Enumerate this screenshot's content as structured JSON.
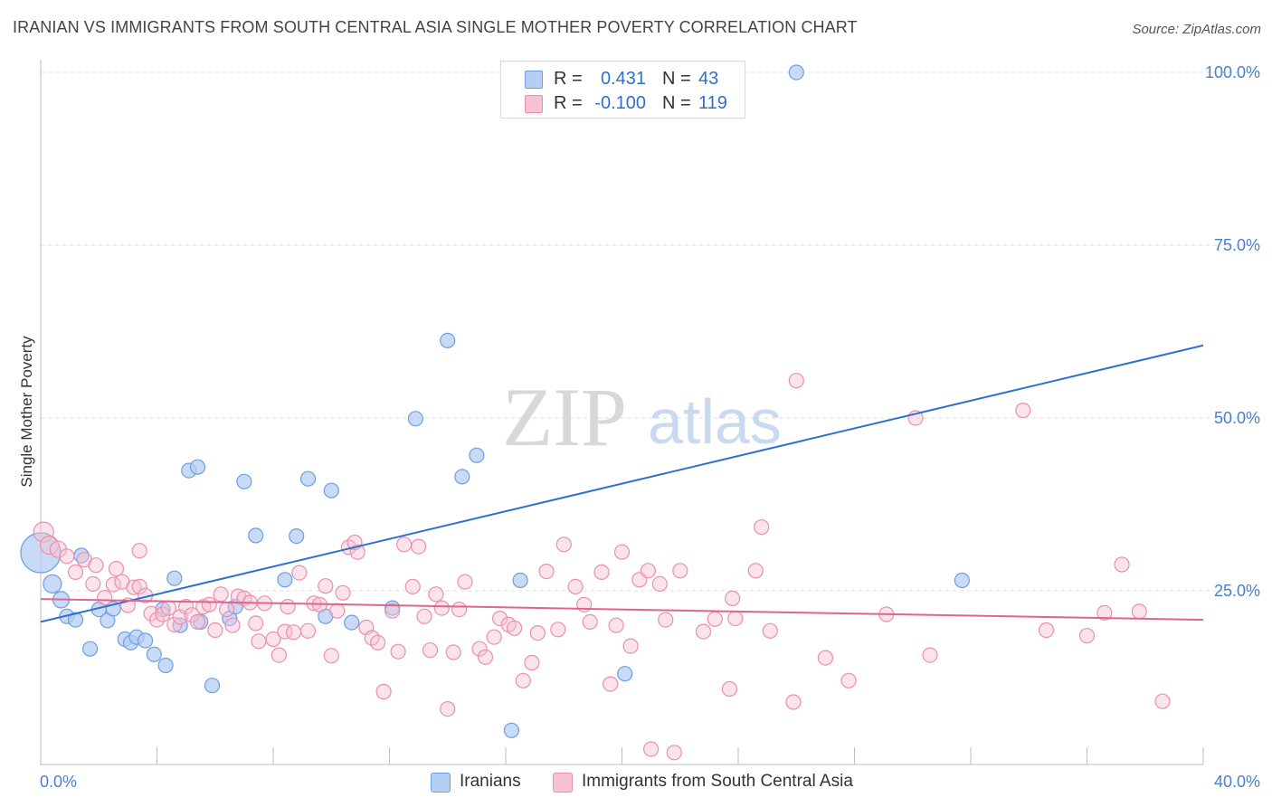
{
  "title": "IRANIAN VS IMMIGRANTS FROM SOUTH CENTRAL ASIA SINGLE MOTHER POVERTY CORRELATION CHART",
  "source": "Source: ZipAtlas.com",
  "watermark": {
    "zip": "ZIP",
    "atlas": "atlas"
  },
  "colors": {
    "blue_fill": "#b5cef2",
    "blue_stroke": "#6e9fe0",
    "blue_line": "#2f6fd0",
    "pink_fill": "#f7c2d3",
    "pink_stroke": "#ea8fae",
    "pink_line": "#e0648f",
    "axis_text": "#4a7fd0",
    "grid": "#dedede"
  },
  "legend": {
    "rows": [
      {
        "r_label": "R =",
        "r_value": "0.431",
        "n_label": "N =",
        "n_value": "43"
      },
      {
        "r_label": "R =",
        "r_value": "-0.100",
        "n_label": "N =",
        "n_value": "119"
      }
    ]
  },
  "chart_data": {
    "type": "scatter",
    "title": "IRANIAN VS IMMIGRANTS FROM SOUTH CENTRAL ASIA SINGLE MOTHER POVERTY CORRELATION CHART",
    "xlabel": "",
    "ylabel": "Single Mother Poverty",
    "xlim": [
      0,
      40
    ],
    "ylim": [
      0,
      102
    ],
    "x_tick_labels": [
      {
        "value": 0,
        "label": "0.0%"
      },
      {
        "value": 40,
        "label": "40.0%"
      }
    ],
    "x_minor_ticks": [
      4,
      8,
      12,
      16,
      20,
      24,
      28,
      32,
      36
    ],
    "y_tick_labels": [
      {
        "value": 25,
        "label": "25.0%"
      },
      {
        "value": 50,
        "label": "50.0%"
      },
      {
        "value": 75,
        "label": "75.0%"
      },
      {
        "value": 100,
        "label": "100.0%"
      }
    ],
    "grid": true,
    "legend_position": "top-center",
    "series": [
      {
        "name": "Iranians",
        "r": 0.431,
        "n": 43,
        "trend": {
          "x": [
            0,
            40
          ],
          "y": [
            20.5,
            60.5
          ]
        },
        "points": [
          [
            0.0,
            30.5,
            22
          ],
          [
            0.4,
            26.0,
            10
          ],
          [
            0.7,
            23.7,
            9
          ],
          [
            0.9,
            21.3,
            8
          ],
          [
            1.2,
            20.8,
            8
          ],
          [
            1.4,
            30.1,
            8
          ],
          [
            1.7,
            16.6,
            8
          ],
          [
            2.0,
            22.3,
            8
          ],
          [
            2.3,
            20.7,
            8
          ],
          [
            2.5,
            22.4,
            8
          ],
          [
            2.9,
            18.0,
            8
          ],
          [
            3.1,
            17.5,
            8
          ],
          [
            3.3,
            18.3,
            8
          ],
          [
            3.6,
            17.8,
            8
          ],
          [
            3.9,
            15.8,
            8
          ],
          [
            4.2,
            22.3,
            8
          ],
          [
            4.3,
            14.2,
            8
          ],
          [
            4.6,
            26.8,
            8
          ],
          [
            4.8,
            20.0,
            8
          ],
          [
            5.1,
            42.4,
            8
          ],
          [
            5.4,
            42.9,
            8
          ],
          [
            5.5,
            20.5,
            8
          ],
          [
            5.9,
            11.3,
            8
          ],
          [
            6.5,
            21.0,
            8
          ],
          [
            6.7,
            22.7,
            8
          ],
          [
            7.0,
            40.8,
            8
          ],
          [
            7.4,
            33.0,
            8
          ],
          [
            8.4,
            26.6,
            8
          ],
          [
            8.8,
            32.9,
            8
          ],
          [
            9.2,
            41.2,
            8
          ],
          [
            9.8,
            21.3,
            8
          ],
          [
            10.0,
            39.5,
            8
          ],
          [
            10.7,
            20.4,
            8
          ],
          [
            12.1,
            22.5,
            8
          ],
          [
            12.9,
            49.9,
            8
          ],
          [
            14.0,
            61.2,
            8
          ],
          [
            14.5,
            41.5,
            8
          ],
          [
            15.0,
            44.6,
            8
          ],
          [
            16.2,
            4.8,
            8
          ],
          [
            16.5,
            26.5,
            8
          ],
          [
            20.1,
            13.0,
            8
          ],
          [
            26.0,
            100.0,
            8
          ],
          [
            31.7,
            26.5,
            8
          ]
        ]
      },
      {
        "name": "Immigrants from South Central Asia",
        "r": -0.1,
        "n": 119,
        "trend": {
          "x": [
            0,
            40
          ],
          "y": [
            23.8,
            20.8
          ]
        },
        "points": [
          [
            0.1,
            33.5,
            11
          ],
          [
            0.3,
            31.6,
            10
          ],
          [
            0.6,
            31.0,
            9
          ],
          [
            0.9,
            30.0,
            8
          ],
          [
            1.2,
            27.7,
            8
          ],
          [
            1.5,
            29.5,
            8
          ],
          [
            1.8,
            26.0,
            8
          ],
          [
            1.9,
            28.7,
            8
          ],
          [
            2.2,
            24.0,
            8
          ],
          [
            2.5,
            25.9,
            8
          ],
          [
            2.6,
            28.2,
            8
          ],
          [
            2.8,
            26.3,
            8
          ],
          [
            3.0,
            22.9,
            8
          ],
          [
            3.2,
            25.5,
            8
          ],
          [
            3.4,
            25.6,
            8
          ],
          [
            3.4,
            30.8,
            8
          ],
          [
            3.6,
            24.3,
            8
          ],
          [
            3.8,
            21.7,
            8
          ],
          [
            4.0,
            20.8,
            8
          ],
          [
            4.2,
            21.6,
            8
          ],
          [
            4.4,
            22.5,
            8
          ],
          [
            4.6,
            20.1,
            8
          ],
          [
            4.8,
            21.2,
            8
          ],
          [
            5.0,
            22.7,
            8
          ],
          [
            5.2,
            21.5,
            8
          ],
          [
            5.4,
            20.5,
            8
          ],
          [
            5.6,
            22.7,
            8
          ],
          [
            5.8,
            23.0,
            8
          ],
          [
            6.0,
            19.3,
            8
          ],
          [
            6.2,
            24.5,
            8
          ],
          [
            6.4,
            22.3,
            8
          ],
          [
            6.6,
            20.0,
            8
          ],
          [
            6.8,
            24.2,
            8
          ],
          [
            7.0,
            23.9,
            8
          ],
          [
            7.2,
            23.3,
            8
          ],
          [
            7.4,
            20.3,
            8
          ],
          [
            7.5,
            17.7,
            8
          ],
          [
            7.7,
            23.2,
            8
          ],
          [
            8.0,
            18.0,
            8
          ],
          [
            8.2,
            15.7,
            8
          ],
          [
            8.4,
            19.1,
            8
          ],
          [
            8.5,
            22.7,
            8
          ],
          [
            8.7,
            19.0,
            8
          ],
          [
            8.9,
            27.6,
            8
          ],
          [
            9.2,
            19.2,
            8
          ],
          [
            9.4,
            23.2,
            8
          ],
          [
            9.6,
            23.0,
            8
          ],
          [
            9.8,
            25.7,
            8
          ],
          [
            10.0,
            15.6,
            8
          ],
          [
            10.2,
            22.1,
            8
          ],
          [
            10.4,
            24.7,
            8
          ],
          [
            10.6,
            31.3,
            8
          ],
          [
            10.9,
            30.6,
            8
          ],
          [
            10.8,
            32.0,
            8
          ],
          [
            11.2,
            19.7,
            8
          ],
          [
            11.4,
            18.2,
            8
          ],
          [
            11.6,
            17.5,
            8
          ],
          [
            11.8,
            10.4,
            8
          ],
          [
            12.1,
            22.1,
            8
          ],
          [
            12.3,
            16.2,
            8
          ],
          [
            12.5,
            31.7,
            8
          ],
          [
            12.8,
            25.6,
            8
          ],
          [
            13.0,
            31.4,
            8
          ],
          [
            13.2,
            21.3,
            8
          ],
          [
            13.4,
            16.4,
            8
          ],
          [
            13.6,
            24.5,
            8
          ],
          [
            13.8,
            22.5,
            8
          ],
          [
            14.0,
            7.9,
            8
          ],
          [
            14.2,
            16.1,
            8
          ],
          [
            14.4,
            22.3,
            8
          ],
          [
            14.6,
            26.3,
            8
          ],
          [
            15.1,
            16.6,
            8
          ],
          [
            15.3,
            15.4,
            8
          ],
          [
            15.6,
            18.3,
            8
          ],
          [
            15.8,
            21.0,
            8
          ],
          [
            16.1,
            20.1,
            8
          ],
          [
            16.3,
            19.6,
            8
          ],
          [
            16.6,
            12.0,
            8
          ],
          [
            16.9,
            14.6,
            8
          ],
          [
            17.1,
            18.9,
            8
          ],
          [
            17.4,
            27.8,
            8
          ],
          [
            17.8,
            19.4,
            8
          ],
          [
            18.0,
            31.7,
            8
          ],
          [
            18.4,
            25.6,
            8
          ],
          [
            18.7,
            23.0,
            8
          ],
          [
            18.9,
            20.5,
            8
          ],
          [
            19.3,
            27.7,
            8
          ],
          [
            19.6,
            11.5,
            8
          ],
          [
            19.8,
            20.0,
            8
          ],
          [
            20.0,
            30.6,
            8
          ],
          [
            20.3,
            17.0,
            8
          ],
          [
            20.6,
            26.6,
            8
          ],
          [
            20.9,
            27.9,
            8
          ],
          [
            21.0,
            2.1,
            8
          ],
          [
            21.3,
            26.0,
            8
          ],
          [
            21.5,
            20.8,
            8
          ],
          [
            21.8,
            1.6,
            8
          ],
          [
            22.0,
            27.9,
            8
          ],
          [
            22.8,
            19.1,
            8
          ],
          [
            23.2,
            20.9,
            8
          ],
          [
            23.7,
            10.8,
            8
          ],
          [
            23.8,
            23.9,
            8
          ],
          [
            23.9,
            21.0,
            8
          ],
          [
            24.6,
            27.9,
            8
          ],
          [
            24.8,
            34.2,
            8
          ],
          [
            25.1,
            19.2,
            8
          ],
          [
            25.9,
            8.9,
            8
          ],
          [
            26.0,
            55.4,
            8
          ],
          [
            27.0,
            15.3,
            8
          ],
          [
            27.8,
            12.0,
            8
          ],
          [
            29.1,
            21.6,
            8
          ],
          [
            30.1,
            50.0,
            8
          ],
          [
            30.6,
            15.7,
            8
          ],
          [
            33.8,
            51.1,
            8
          ],
          [
            34.6,
            19.3,
            8
          ],
          [
            36.0,
            18.5,
            8
          ],
          [
            36.6,
            21.8,
            8
          ],
          [
            37.2,
            28.8,
            8
          ],
          [
            37.8,
            22.0,
            8
          ],
          [
            38.6,
            9.0,
            8
          ]
        ]
      }
    ]
  }
}
